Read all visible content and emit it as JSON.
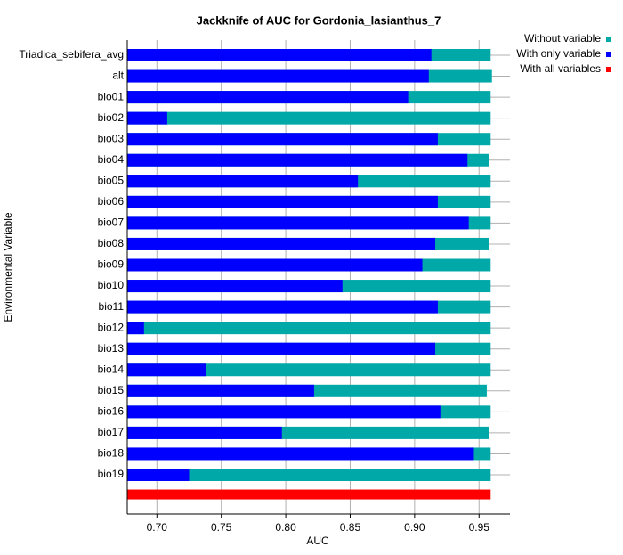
{
  "chart_data": {
    "type": "bar",
    "orientation": "horizontal",
    "title": "Jackknife of AUC for Gordonia_lasianthus_7",
    "x_label": "AUC",
    "y_label": "Environmental Variable",
    "categories": [
      "Triadica_sebifera_avg",
      "alt",
      "bio01",
      "bio02",
      "bio03",
      "bio04",
      "bio05",
      "bio06",
      "bio07",
      "bio08",
      "bio09",
      "bio10",
      "bio11",
      "bio12",
      "bio13",
      "bio14",
      "bio15",
      "bio16",
      "bio17",
      "bio18",
      "bio19"
    ],
    "series": [
      {
        "name": "Without variable",
        "color": "#00a8a8",
        "values": [
          0.959,
          0.96,
          0.959,
          0.959,
          0.959,
          0.958,
          0.959,
          0.959,
          0.959,
          0.958,
          0.959,
          0.959,
          0.959,
          0.959,
          0.959,
          0.959,
          0.956,
          0.959,
          0.958,
          0.959,
          0.959
        ]
      },
      {
        "name": "With only variable",
        "color": "#0000ff",
        "values": [
          0.913,
          0.911,
          0.895,
          0.708,
          0.918,
          0.941,
          0.856,
          0.918,
          0.942,
          0.916,
          0.906,
          0.844,
          0.918,
          0.69,
          0.916,
          0.738,
          0.822,
          0.92,
          0.797,
          0.946,
          0.725
        ]
      }
    ],
    "reference": {
      "name": "With all variables",
      "color": "#ff0000",
      "value": 0.959
    },
    "xlim": [
      0.677,
      0.974
    ],
    "xticks": [
      {
        "value": 0.7,
        "label": "0.70"
      },
      0.75,
      {
        "value": 0.8,
        "label": "0.80"
      },
      0.85,
      {
        "value": 0.9,
        "label": "0.90"
      },
      0.95
    ],
    "grid": true,
    "legend": "top-right"
  }
}
